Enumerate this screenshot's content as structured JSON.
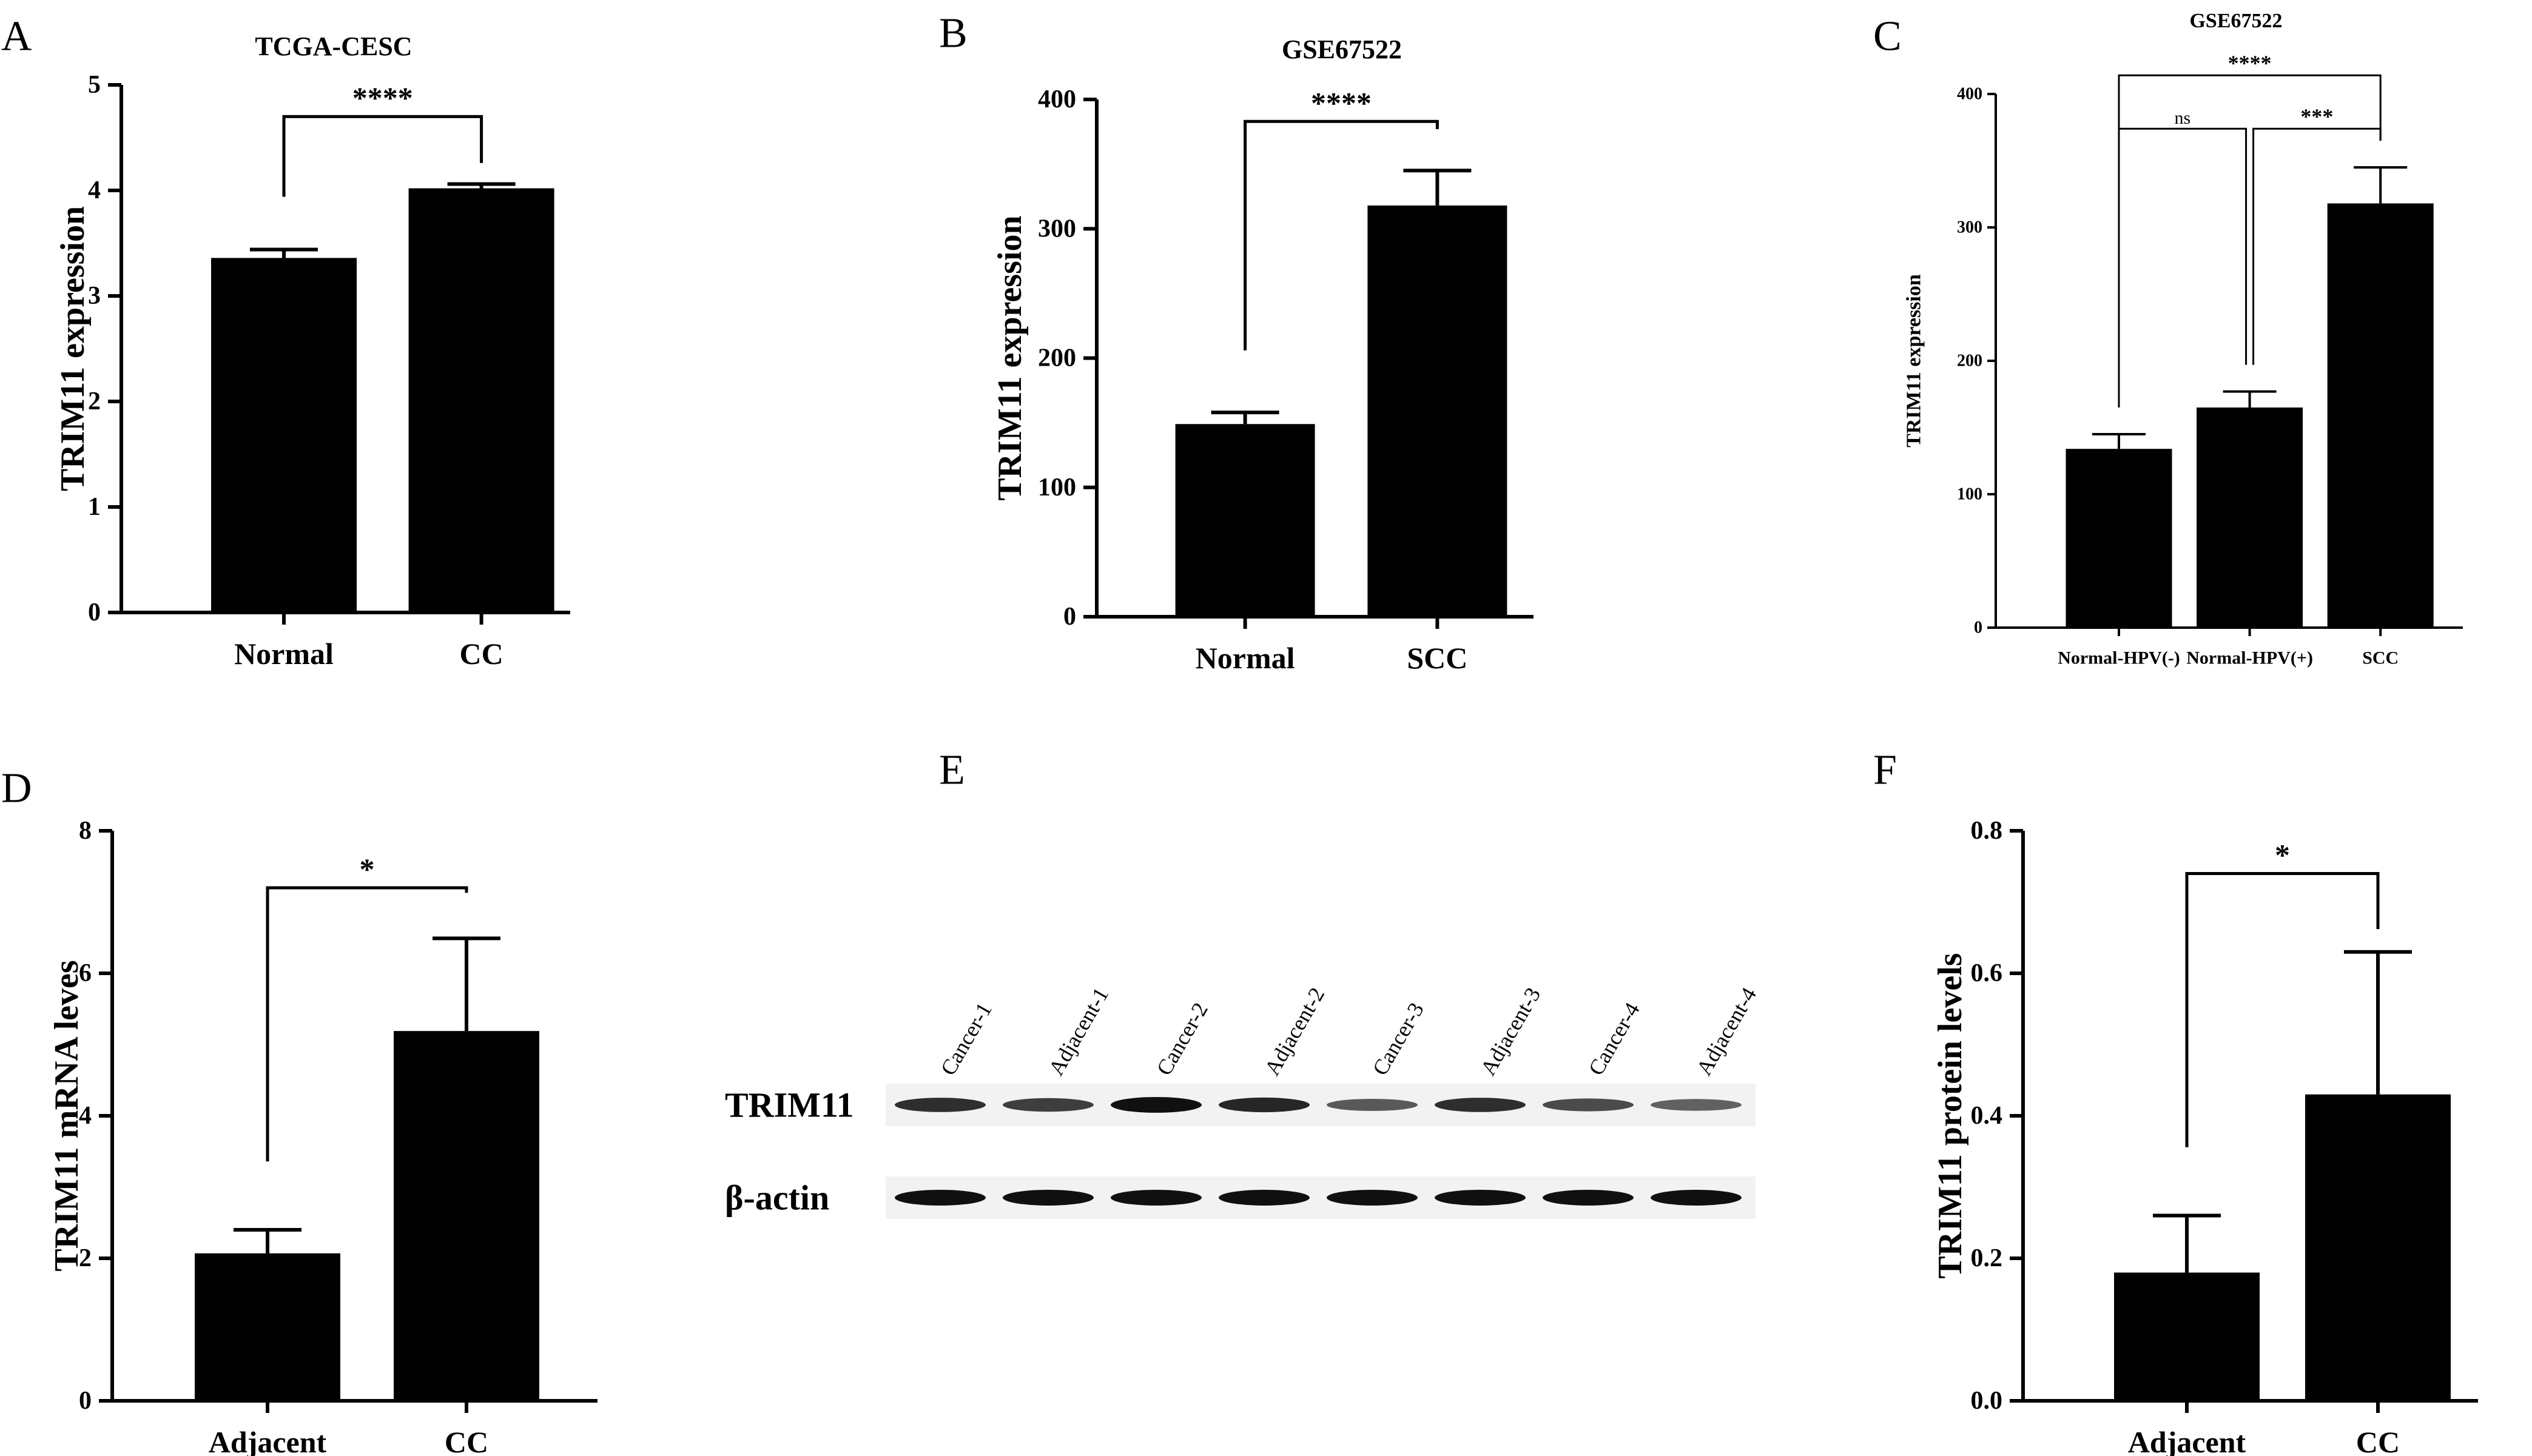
{
  "panel_letters": [
    "A",
    "B",
    "C",
    "D",
    "E",
    "F"
  ],
  "chart_data": [
    {
      "panel": "A",
      "type": "bar",
      "title": "TCGA-CESC",
      "ylabel": "TRIM11 expression",
      "xlabel": "",
      "categories": [
        "Normal",
        "CC"
      ],
      "values": [
        3.36,
        4.02
      ],
      "errors": [
        0.08,
        0.04
      ],
      "ylim": [
        0,
        5
      ],
      "yticks": [
        "0",
        "1",
        "2",
        "3",
        "4",
        "5"
      ],
      "comparisons": [
        {
          "from": 0,
          "to": 1,
          "label": "****"
        }
      ]
    },
    {
      "panel": "B",
      "type": "bar",
      "title": "GSE67522",
      "ylabel": "TRIM11 expression",
      "xlabel": "",
      "categories": [
        "Normal",
        "SCC"
      ],
      "values": [
        149,
        318
      ],
      "errors": [
        9,
        27
      ],
      "ylim": [
        0,
        400
      ],
      "yticks": [
        "0",
        "100",
        "200",
        "300",
        "400"
      ],
      "comparisons": [
        {
          "from": 0,
          "to": 1,
          "label": "****"
        }
      ]
    },
    {
      "panel": "C",
      "type": "bar",
      "title": "GSE67522",
      "ylabel": "TRIM11 expression",
      "xlabel": "",
      "categories": [
        "Normal-HPV(-)",
        "Normal-HPV(+)",
        "SCC"
      ],
      "values": [
        134,
        165,
        318
      ],
      "errors": [
        11,
        12,
        27
      ],
      "ylim": [
        0,
        400
      ],
      "yticks": [
        "0",
        "100",
        "200",
        "300",
        "400"
      ],
      "comparisons": [
        {
          "from": 0,
          "to": 1,
          "label": "ns"
        },
        {
          "from": 1,
          "to": 2,
          "label": "***"
        },
        {
          "from": 0,
          "to": 2,
          "label": "****"
        }
      ]
    },
    {
      "panel": "D",
      "type": "bar",
      "title": "",
      "ylabel": "TRIM11 mRNA leves",
      "xlabel": "",
      "categories": [
        "Adjacent",
        "CC"
      ],
      "values": [
        2.07,
        5.19
      ],
      "errors": [
        0.33,
        1.3
      ],
      "ylim": [
        0,
        8
      ],
      "yticks": [
        "0",
        "2",
        "4",
        "6",
        "8"
      ],
      "comparisons": [
        {
          "from": 0,
          "to": 1,
          "label": "*"
        }
      ]
    },
    {
      "panel": "F",
      "type": "bar",
      "title": "",
      "ylabel": "TRIM11 protein levels",
      "xlabel": "",
      "categories": [
        "Adjacent",
        "CC"
      ],
      "values": [
        0.18,
        0.43
      ],
      "errors": [
        0.08,
        0.2
      ],
      "ylim": [
        0,
        0.8
      ],
      "yticks": [
        "0.0",
        "0.2",
        "0.4",
        "0.6",
        "0.8"
      ],
      "comparisons": [
        {
          "from": 0,
          "to": 1,
          "label": "*"
        }
      ]
    }
  ],
  "blot": {
    "panel": "E",
    "lanes": [
      "Cancer-1",
      "Adjacent-1",
      "Cancer-2",
      "Adjacent-2",
      "Cancer-3",
      "Adjacent-3",
      "Cancer-4",
      "Adjacent-4"
    ],
    "rows": [
      {
        "label": "TRIM11",
        "intensities": [
          0.8,
          0.7,
          1.0,
          0.85,
          0.5,
          0.8,
          0.6,
          0.45
        ]
      },
      {
        "label": "β-actin",
        "intensities": [
          1.0,
          1.0,
          1.0,
          1.0,
          1.0,
          1.0,
          1.0,
          1.0
        ]
      }
    ],
    "colors": {
      "band": "#101010",
      "background": "#f2f2f2"
    }
  },
  "colors": {
    "bar": "#000000",
    "axis": "#000000",
    "background": "#ffffff"
  }
}
